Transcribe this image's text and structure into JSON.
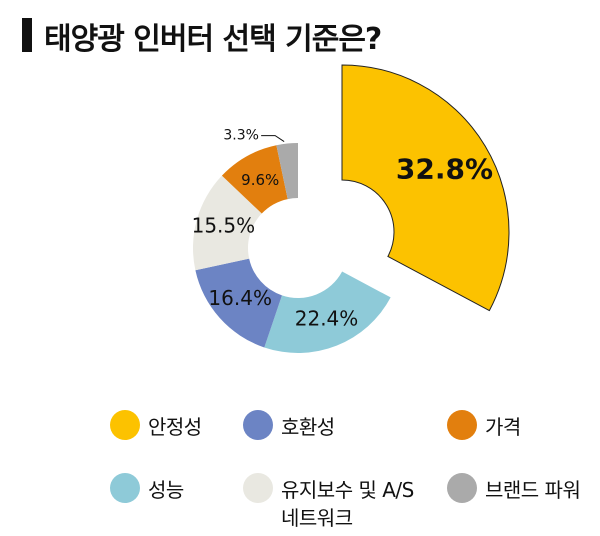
{
  "title": "태양광 인버터 선택 기준은?",
  "chart_data": {
    "type": "pie",
    "variant": "donut",
    "title": "태양광 인버터 선택 기준은?",
    "categories": [
      "안정성",
      "성능",
      "호환성",
      "유지보수 및 A/S\n네트워크",
      "가격",
      "브랜드 파워"
    ],
    "values": [
      32.8,
      22.4,
      16.4,
      15.5,
      9.6,
      3.3
    ],
    "labels": [
      "32.8%",
      "22.4%",
      "16.4%",
      "15.5%",
      "9.6%",
      "3.3%"
    ],
    "colors": [
      "#FCC200",
      "#8ECAD8",
      "#6C84C4",
      "#E9E8E1",
      "#E27F0E",
      "#AAAAAA"
    ],
    "exploded": "안정성",
    "legend_position": "bottom"
  },
  "legend": {
    "items": [
      {
        "label": "안정성",
        "color": "#FCC200"
      },
      {
        "label": "호환성",
        "color": "#6C84C4"
      },
      {
        "label": "가격",
        "color": "#E27F0E"
      },
      {
        "label": "성능",
        "color": "#8ECAD8"
      },
      {
        "label": "유지보수 및 A/S\n네트워크",
        "color": "#E9E8E1"
      },
      {
        "label": "브랜드 파워",
        "color": "#AAAAAA"
      }
    ]
  }
}
